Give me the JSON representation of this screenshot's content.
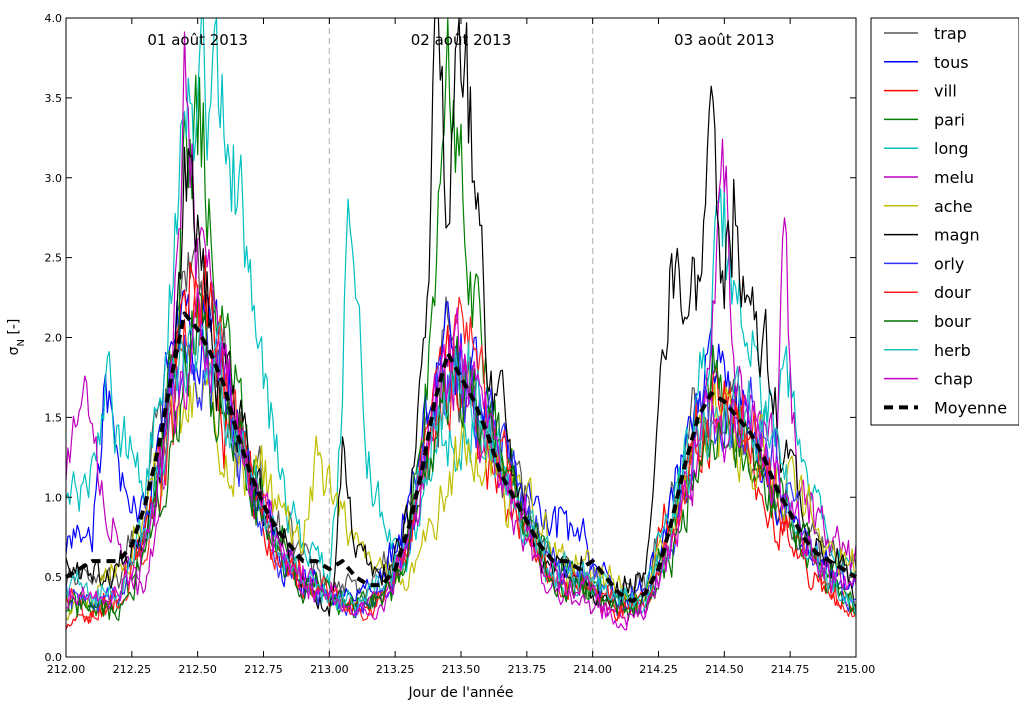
{
  "chart_data": {
    "type": "line",
    "xlabel": "Jour de l'année",
    "ylabel_main": "σ",
    "ylabel_sub": "N",
    "ylabel_suffix": " [-]",
    "xlim": [
      212.0,
      215.0
    ],
    "ylim": [
      0.0,
      4.0
    ],
    "x_ticks": [
      212.0,
      212.25,
      212.5,
      212.75,
      213.0,
      213.25,
      213.5,
      213.75,
      214.0,
      214.25,
      214.5,
      214.75,
      215.0
    ],
    "x_tick_labels": [
      "212.00",
      "212.25",
      "212.50",
      "212.75",
      "213.00",
      "213.25",
      "213.50",
      "213.75",
      "214.00",
      "214.25",
      "214.50",
      "214.75",
      "215.00"
    ],
    "y_ticks": [
      0.0,
      0.5,
      1.0,
      1.5,
      2.0,
      2.5,
      3.0,
      3.5,
      4.0
    ],
    "y_tick_labels": [
      "0.0",
      "0.5",
      "1.0",
      "1.5",
      "2.0",
      "2.5",
      "3.0",
      "3.5",
      "4.0"
    ],
    "day_separators": [
      213.0,
      214.0
    ],
    "day_labels": [
      {
        "x": 212.5,
        "text": "01 août 2013"
      },
      {
        "x": 213.5,
        "text": "02 août 2013"
      },
      {
        "x": 214.5,
        "text": "03 août 2013"
      }
    ],
    "grid": false,
    "legend_position": "outside-top-right",
    "series_style": "noisy diurnal curves, approximate",
    "series": [
      {
        "name": "trap",
        "color": "#555555",
        "x": [
          212.0,
          212.1,
          212.2,
          212.3,
          212.4,
          212.45,
          212.5,
          212.55,
          212.6,
          212.7,
          212.8,
          212.9,
          213.0,
          213.1,
          213.2,
          213.3,
          213.4,
          213.45,
          213.5,
          213.55,
          213.6,
          213.7,
          213.8,
          213.9,
          214.0,
          214.1,
          214.2,
          214.3,
          214.4,
          214.45,
          214.5,
          214.55,
          214.6,
          214.7,
          214.8,
          214.9,
          215.0
        ],
        "y": [
          0.5,
          0.45,
          0.5,
          0.9,
          1.9,
          2.4,
          2.2,
          2.0,
          1.8,
          1.2,
          0.8,
          0.6,
          0.5,
          0.4,
          0.55,
          0.9,
          1.6,
          2.0,
          1.8,
          1.7,
          1.4,
          1.0,
          0.7,
          0.5,
          0.45,
          0.35,
          0.5,
          1.0,
          1.5,
          1.7,
          1.6,
          1.5,
          1.3,
          1.0,
          0.8,
          0.6,
          0.5
        ]
      },
      {
        "name": "tous",
        "color": "#0000ff",
        "x": [
          212.0,
          212.1,
          212.15,
          212.2,
          212.3,
          212.4,
          212.45,
          212.5,
          212.55,
          212.6,
          212.7,
          212.8,
          212.9,
          213.0,
          213.1,
          213.2,
          213.3,
          213.4,
          213.45,
          213.5,
          213.55,
          213.6,
          213.7,
          213.8,
          213.9,
          214.0,
          214.1,
          214.2,
          214.3,
          214.4,
          214.45,
          214.5,
          214.55,
          214.6,
          214.7,
          214.8,
          214.9,
          215.0
        ],
        "y": [
          0.6,
          0.9,
          1.8,
          1.3,
          0.8,
          1.8,
          2.3,
          2.1,
          2.0,
          1.8,
          1.1,
          0.7,
          0.5,
          0.4,
          0.35,
          0.5,
          0.9,
          1.8,
          2.1,
          1.9,
          1.7,
          1.5,
          1.1,
          0.8,
          0.9,
          0.6,
          0.35,
          0.4,
          1.0,
          1.6,
          1.8,
          1.7,
          1.6,
          1.4,
          1.0,
          0.7,
          0.55,
          0.45
        ]
      },
      {
        "name": "vill",
        "color": "#ff0000",
        "x": [
          212.0,
          212.1,
          212.2,
          212.3,
          212.4,
          212.45,
          212.5,
          212.55,
          212.6,
          212.7,
          212.8,
          212.9,
          213.0,
          213.1,
          213.2,
          213.3,
          213.4,
          213.45,
          213.5,
          213.55,
          213.6,
          213.7,
          213.8,
          213.9,
          214.0,
          214.1,
          214.2,
          214.3,
          214.4,
          214.45,
          214.5,
          214.55,
          214.6,
          214.7,
          214.8,
          214.9,
          215.0
        ],
        "y": [
          0.2,
          0.3,
          0.35,
          0.8,
          1.6,
          2.1,
          2.4,
          2.1,
          1.6,
          1.0,
          0.6,
          0.45,
          0.35,
          0.3,
          0.4,
          0.8,
          1.5,
          1.9,
          1.8,
          1.6,
          1.2,
          0.9,
          0.6,
          0.45,
          0.4,
          0.3,
          0.4,
          0.9,
          1.4,
          1.6,
          1.5,
          1.4,
          1.2,
          0.9,
          0.6,
          0.4,
          0.3
        ]
      },
      {
        "name": "pari",
        "color": "#008000",
        "x": [
          212.0,
          212.1,
          212.2,
          212.3,
          212.4,
          212.45,
          212.5,
          212.55,
          212.6,
          212.7,
          212.8,
          212.9,
          213.0,
          213.1,
          213.2,
          213.3,
          213.4,
          213.45,
          213.5,
          213.55,
          213.6,
          213.7,
          213.8,
          213.9,
          214.0,
          214.1,
          214.2,
          214.3,
          214.4,
          214.45,
          214.5,
          214.55,
          214.6,
          214.7,
          214.8,
          214.9,
          215.0
        ],
        "y": [
          0.35,
          0.3,
          0.35,
          0.7,
          1.8,
          3.3,
          3.5,
          2.8,
          2.0,
          1.2,
          0.8,
          0.5,
          0.4,
          0.3,
          0.35,
          0.7,
          2.2,
          3.7,
          3.3,
          2.2,
          1.5,
          1.0,
          0.7,
          0.5,
          0.4,
          0.35,
          0.35,
          0.8,
          1.5,
          1.7,
          1.6,
          1.5,
          1.3,
          1.0,
          0.7,
          0.5,
          0.35
        ]
      },
      {
        "name": "long",
        "color": "#00c0c0",
        "x": [
          212.0,
          212.1,
          212.15,
          212.2,
          212.3,
          212.4,
          212.45,
          212.5,
          212.55,
          212.6,
          212.65,
          212.7,
          212.8,
          212.9,
          213.0,
          213.05,
          213.07,
          213.1,
          213.15,
          213.2,
          213.3,
          213.4,
          213.5,
          213.6,
          213.7,
          213.8,
          213.9,
          214.0,
          214.1,
          214.2,
          214.3,
          214.4,
          214.5,
          214.55,
          214.6,
          214.7,
          214.75,
          214.8,
          214.9,
          215.0
        ],
        "y": [
          1.0,
          1.2,
          1.8,
          1.4,
          1.1,
          2.4,
          3.1,
          3.7,
          3.0,
          3.6,
          2.8,
          2.2,
          1.3,
          0.7,
          0.5,
          1.7,
          3.3,
          2.2,
          1.3,
          0.8,
          0.6,
          1.2,
          1.5,
          1.3,
          1.0,
          0.6,
          0.5,
          0.45,
          0.4,
          0.4,
          0.9,
          1.5,
          2.7,
          2.0,
          1.8,
          1.5,
          1.6,
          1.1,
          0.7,
          0.5
        ]
      },
      {
        "name": "melu",
        "color": "#bf00bf",
        "x": [
          212.0,
          212.05,
          212.1,
          212.2,
          212.3,
          212.4,
          212.45,
          212.5,
          212.55,
          212.6,
          212.7,
          212.8,
          212.9,
          213.0,
          213.1,
          213.2,
          213.3,
          213.4,
          213.45,
          213.5,
          213.55,
          213.6,
          213.7,
          213.8,
          213.9,
          214.0,
          214.1,
          214.2,
          214.3,
          214.4,
          214.45,
          214.5,
          214.55,
          214.6,
          214.7,
          214.73,
          214.75,
          214.8,
          214.9,
          215.0
        ],
        "y": [
          1.2,
          1.6,
          1.3,
          0.6,
          0.5,
          1.5,
          3.8,
          2.5,
          2.2,
          1.7,
          1.1,
          0.7,
          0.5,
          0.4,
          0.3,
          0.4,
          0.7,
          1.5,
          2.0,
          1.7,
          1.5,
          1.3,
          0.9,
          0.5,
          0.4,
          0.35,
          0.3,
          0.3,
          0.7,
          1.3,
          1.8,
          2.8,
          1.6,
          1.4,
          1.4,
          2.5,
          1.5,
          1.0,
          0.7,
          0.6
        ]
      },
      {
        "name": "ache",
        "color": "#bfbf00",
        "x": [
          212.0,
          212.1,
          212.2,
          212.3,
          212.4,
          212.5,
          212.6,
          212.7,
          212.8,
          212.9,
          212.95,
          213.0,
          213.1,
          213.2,
          213.3,
          213.4,
          213.5,
          213.6,
          213.7,
          213.8,
          213.9,
          214.0,
          214.1,
          214.2,
          214.3,
          214.4,
          214.5,
          214.6,
          214.7,
          214.8,
          214.9,
          215.0
        ],
        "y": [
          0.3,
          0.4,
          0.5,
          0.9,
          1.4,
          1.6,
          1.4,
          1.2,
          1.0,
          0.8,
          1.3,
          1.1,
          0.7,
          0.5,
          0.5,
          0.9,
          1.3,
          1.2,
          1.0,
          0.8,
          0.6,
          0.5,
          0.45,
          0.4,
          0.8,
          1.3,
          1.5,
          1.3,
          1.2,
          0.9,
          0.7,
          0.5
        ]
      },
      {
        "name": "magn",
        "color": "#000000",
        "x": [
          212.0,
          212.1,
          212.2,
          212.3,
          212.4,
          212.45,
          212.5,
          212.55,
          212.6,
          212.7,
          212.8,
          212.9,
          213.0,
          213.05,
          213.1,
          213.2,
          213.3,
          213.35,
          213.4,
          213.45,
          213.5,
          213.55,
          213.6,
          213.7,
          213.8,
          213.9,
          214.0,
          214.1,
          214.2,
          214.25,
          214.3,
          214.4,
          214.45,
          214.5,
          214.55,
          214.6,
          214.7,
          214.8,
          214.9,
          215.0
        ],
        "y": [
          0.6,
          0.5,
          0.5,
          0.7,
          1.6,
          2.9,
          2.7,
          2.3,
          1.8,
          1.2,
          0.8,
          0.5,
          0.3,
          1.2,
          0.7,
          0.5,
          0.8,
          2.0,
          3.9,
          2.6,
          3.8,
          3.0,
          2.0,
          1.2,
          0.7,
          0.5,
          0.45,
          0.4,
          0.6,
          1.5,
          2.3,
          2.2,
          3.1,
          2.8,
          3.1,
          2.2,
          1.5,
          0.9,
          0.6,
          0.4
        ]
      },
      {
        "name": "orly",
        "color": "#3333ff",
        "x": [
          212.0,
          212.1,
          212.2,
          212.3,
          212.4,
          212.5,
          212.6,
          212.7,
          212.8,
          212.9,
          213.0,
          213.1,
          213.2,
          213.3,
          213.4,
          213.5,
          213.6,
          213.7,
          213.8,
          213.9,
          214.0,
          214.1,
          214.2,
          214.3,
          214.4,
          214.5,
          214.6,
          214.7,
          214.8,
          214.9,
          215.0
        ],
        "y": [
          0.4,
          0.35,
          0.4,
          0.8,
          1.7,
          2.0,
          1.7,
          1.1,
          0.6,
          0.45,
          0.35,
          0.3,
          0.35,
          0.7,
          1.5,
          1.8,
          1.5,
          1.1,
          0.7,
          0.5,
          0.45,
          0.35,
          0.35,
          0.7,
          1.4,
          1.6,
          1.5,
          1.2,
          0.8,
          0.5,
          0.35
        ]
      },
      {
        "name": "dour",
        "color": "#ff2020",
        "x": [
          212.0,
          212.1,
          212.2,
          212.3,
          212.4,
          212.5,
          212.6,
          212.7,
          212.8,
          212.9,
          213.0,
          213.1,
          213.2,
          213.3,
          213.4,
          213.5,
          213.6,
          213.7,
          213.8,
          213.9,
          214.0,
          214.1,
          214.2,
          214.3,
          214.4,
          214.5,
          214.6,
          214.7,
          214.8,
          214.9,
          215.0
        ],
        "y": [
          0.35,
          0.3,
          0.35,
          0.7,
          1.5,
          2.2,
          1.8,
          1.2,
          0.7,
          0.5,
          0.4,
          0.3,
          0.35,
          0.8,
          1.6,
          1.9,
          1.6,
          1.0,
          0.6,
          0.45,
          0.4,
          0.3,
          0.3,
          0.7,
          1.3,
          1.5,
          1.4,
          1.0,
          0.7,
          0.45,
          0.25
        ]
      },
      {
        "name": "bour",
        "color": "#007000",
        "x": [
          212.0,
          212.1,
          212.2,
          212.3,
          212.4,
          212.5,
          212.6,
          212.7,
          212.8,
          212.9,
          213.0,
          213.1,
          213.2,
          213.3,
          213.4,
          213.5,
          213.6,
          213.7,
          213.8,
          213.9,
          214.0,
          214.1,
          214.2,
          214.3,
          214.4,
          214.5,
          214.6,
          214.7,
          214.8,
          214.9,
          215.0
        ],
        "y": [
          0.3,
          0.25,
          0.3,
          0.6,
          1.4,
          2.0,
          1.6,
          1.0,
          0.6,
          0.45,
          0.4,
          0.3,
          0.35,
          0.7,
          1.4,
          1.7,
          1.5,
          1.0,
          0.6,
          0.45,
          0.4,
          0.3,
          0.3,
          0.6,
          1.2,
          1.4,
          1.3,
          1.0,
          0.7,
          0.45,
          0.3
        ]
      },
      {
        "name": "herb",
        "color": "#20c0c0",
        "x": [
          212.0,
          212.1,
          212.2,
          212.3,
          212.4,
          212.5,
          212.6,
          212.7,
          212.8,
          212.9,
          213.0,
          213.1,
          213.2,
          213.3,
          213.4,
          213.5,
          213.6,
          213.7,
          213.8,
          213.9,
          214.0,
          214.1,
          214.2,
          214.3,
          214.4,
          214.5,
          214.6,
          214.7,
          214.8,
          214.9,
          215.0
        ],
        "y": [
          0.5,
          0.4,
          0.4,
          0.8,
          1.6,
          2.1,
          1.7,
          1.1,
          0.7,
          0.5,
          0.4,
          0.35,
          0.4,
          0.8,
          1.5,
          1.8,
          1.5,
          1.0,
          0.7,
          0.5,
          0.45,
          0.35,
          0.35,
          0.8,
          1.4,
          1.6,
          1.5,
          1.2,
          0.8,
          0.5,
          0.3
        ]
      },
      {
        "name": "chap",
        "color": "#cc00cc",
        "x": [
          212.0,
          212.1,
          212.2,
          212.3,
          212.4,
          212.5,
          212.6,
          212.7,
          212.8,
          212.9,
          213.0,
          213.1,
          213.2,
          213.3,
          213.4,
          213.5,
          213.6,
          213.7,
          213.8,
          213.9,
          214.0,
          214.1,
          214.2,
          214.3,
          214.4,
          214.5,
          214.6,
          214.7,
          214.8,
          214.9,
          215.0
        ],
        "y": [
          0.4,
          0.35,
          0.4,
          0.7,
          1.5,
          2.0,
          1.7,
          1.1,
          0.7,
          0.5,
          0.35,
          0.3,
          0.35,
          0.7,
          1.5,
          1.8,
          1.5,
          1.0,
          0.6,
          0.45,
          0.4,
          0.2,
          0.3,
          0.7,
          1.4,
          1.6,
          1.5,
          1.1,
          0.7,
          0.5,
          0.4
        ]
      },
      {
        "name": "Moyenne",
        "color": "#000000",
        "dashed": true,
        "x": [
          212.0,
          212.05,
          212.1,
          212.15,
          212.2,
          212.25,
          212.3,
          212.35,
          212.4,
          212.45,
          212.5,
          212.55,
          212.6,
          212.65,
          212.7,
          212.75,
          212.8,
          212.85,
          212.9,
          212.95,
          213.0,
          213.05,
          213.1,
          213.15,
          213.2,
          213.25,
          213.3,
          213.35,
          213.4,
          213.45,
          213.5,
          213.55,
          213.6,
          213.65,
          213.7,
          213.75,
          213.8,
          213.85,
          213.9,
          213.95,
          214.0,
          214.05,
          214.1,
          214.15,
          214.2,
          214.25,
          214.3,
          214.35,
          214.4,
          214.45,
          214.5,
          214.55,
          214.6,
          214.65,
          214.7,
          214.75,
          214.8,
          214.85,
          214.9,
          214.95,
          215.0
        ],
        "y": [
          0.5,
          0.55,
          0.6,
          0.6,
          0.6,
          0.7,
          0.95,
          1.3,
          1.75,
          2.15,
          2.05,
          1.9,
          1.7,
          1.4,
          1.15,
          0.95,
          0.8,
          0.7,
          0.6,
          0.6,
          0.55,
          0.6,
          0.5,
          0.45,
          0.45,
          0.55,
          0.8,
          1.15,
          1.6,
          1.9,
          1.75,
          1.6,
          1.4,
          1.15,
          1.0,
          0.85,
          0.7,
          0.6,
          0.6,
          0.55,
          0.6,
          0.5,
          0.4,
          0.35,
          0.4,
          0.55,
          0.85,
          1.2,
          1.5,
          1.65,
          1.6,
          1.5,
          1.4,
          1.25,
          1.05,
          0.9,
          0.75,
          0.65,
          0.6,
          0.55,
          0.5
        ]
      }
    ]
  }
}
